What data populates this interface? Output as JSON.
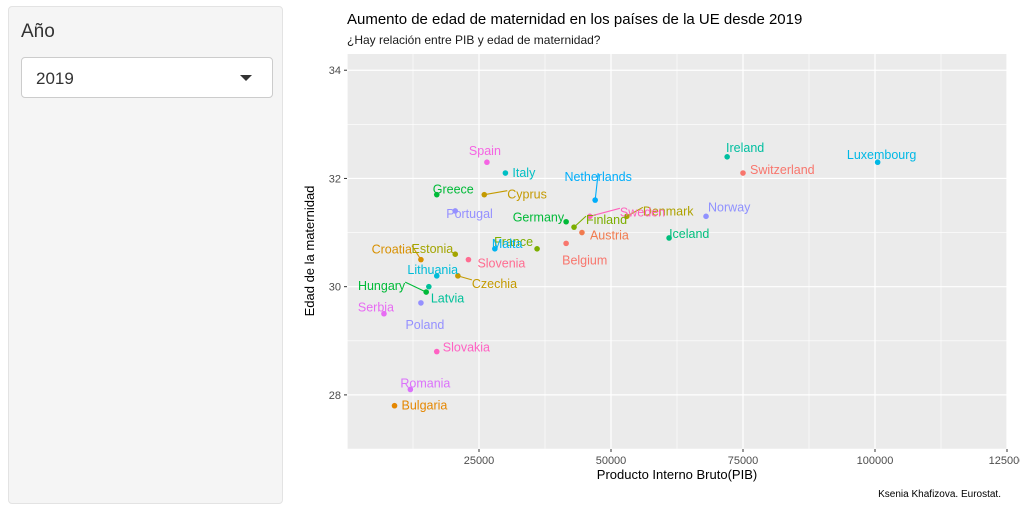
{
  "sidebar": {
    "filter_label": "Año",
    "selected_year": "2019"
  },
  "chart_data": {
    "type": "scatter",
    "title": "Aumento de edad de maternidad en los países de la UE desde 2019",
    "subtitle": "¿Hay relación entre PIB y edad de maternidad?",
    "xlabel": "Producto Interno Bruto(PIB)",
    "ylabel": "Edad de la maternidad",
    "caption": "Ksenia Khafizova. Eurostat.",
    "xlim": [
      0,
      125000
    ],
    "ylim": [
      27,
      34.3
    ],
    "xticks": [
      25000,
      50000,
      75000,
      100000,
      125000
    ],
    "xtick_labels": [
      "25000",
      "50000",
      "75000",
      "100000",
      "125000"
    ],
    "yticks": [
      28,
      30,
      32,
      34
    ],
    "grid": true,
    "legend": "none",
    "points": [
      {
        "country": "Luxembourg",
        "x": 100500,
        "y": 32.3,
        "color": "#00B8E5"
      },
      {
        "country": "Ireland",
        "x": 72000,
        "y": 32.4,
        "color": "#00BFA0"
      },
      {
        "country": "Switzerland",
        "x": 75000,
        "y": 32.1,
        "color": "#F8766D"
      },
      {
        "country": "Norway",
        "x": 68000,
        "y": 31.3,
        "color": "#8F91FF"
      },
      {
        "country": "Denmark",
        "x": 53000,
        "y": 31.3,
        "color": "#AEA200"
      },
      {
        "country": "Iceland",
        "x": 61000,
        "y": 30.9,
        "color": "#00BF7D"
      },
      {
        "country": "Netherlands",
        "x": 47000,
        "y": 31.6,
        "color": "#00ADFA"
      },
      {
        "country": "Sweden",
        "x": 46000,
        "y": 31.3,
        "color": "#FF62BC"
      },
      {
        "country": "Finland",
        "x": 43000,
        "y": 31.1,
        "color": "#7CAE00"
      },
      {
        "country": "Austria",
        "x": 44500,
        "y": 31.0,
        "color": "#F17B4F"
      },
      {
        "country": "Germany",
        "x": 41500,
        "y": 31.2,
        "color": "#00BA38"
      },
      {
        "country": "Belgium",
        "x": 41500,
        "y": 30.8,
        "color": "#F8766D"
      },
      {
        "country": "France",
        "x": 36000,
        "y": 30.7,
        "color": "#7CAE00"
      },
      {
        "country": "Italy",
        "x": 30000,
        "y": 32.1,
        "color": "#00BFC4"
      },
      {
        "country": "Spain",
        "x": 26500,
        "y": 32.3,
        "color": "#F564E3"
      },
      {
        "country": "Cyprus",
        "x": 26000,
        "y": 31.7,
        "color": "#C49A00"
      },
      {
        "country": "Malta",
        "x": 28000,
        "y": 30.7,
        "color": "#00B4F0"
      },
      {
        "country": "Slovenia",
        "x": 23000,
        "y": 30.5,
        "color": "#FF6C91"
      },
      {
        "country": "Portugal",
        "x": 20500,
        "y": 31.4,
        "color": "#9590FF"
      },
      {
        "country": "Greece",
        "x": 17000,
        "y": 31.7,
        "color": "#00BA38"
      },
      {
        "country": "Estonia",
        "x": 20500,
        "y": 30.6,
        "color": "#A3A500"
      },
      {
        "country": "Czechia",
        "x": 21000,
        "y": 30.2,
        "color": "#C49A00"
      },
      {
        "country": "Croatia",
        "x": 14000,
        "y": 30.5,
        "color": "#D89000"
      },
      {
        "country": "Lithuania",
        "x": 17000,
        "y": 30.2,
        "color": "#00BCD8"
      },
      {
        "country": "Latvia",
        "x": 15500,
        "y": 30.0,
        "color": "#00C19A"
      },
      {
        "country": "Hungary",
        "x": 15000,
        "y": 29.9,
        "color": "#00BA38"
      },
      {
        "country": "Poland",
        "x": 14000,
        "y": 29.7,
        "color": "#9590FF"
      },
      {
        "country": "Serbia",
        "x": 7000,
        "y": 29.5,
        "color": "#E76BF3"
      },
      {
        "country": "Slovakia",
        "x": 17000,
        "y": 28.8,
        "color": "#FF61C3"
      },
      {
        "country": "Romania",
        "x": 12000,
        "y": 28.1,
        "color": "#DB72FB"
      },
      {
        "country": "Bulgaria",
        "x": 9000,
        "y": 27.8,
        "color": "#E58700"
      }
    ]
  }
}
